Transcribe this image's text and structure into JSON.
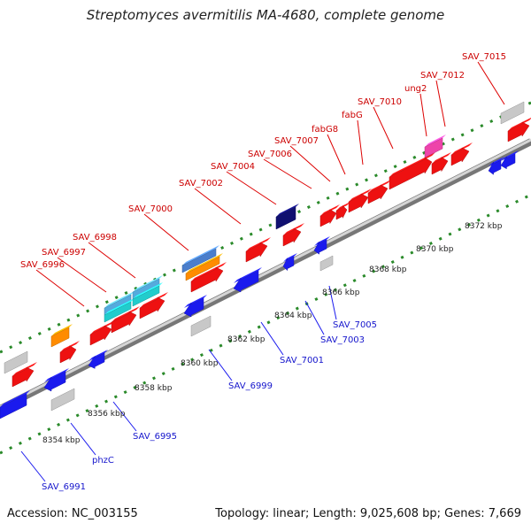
{
  "header": {
    "title": "Streptomyces avermitilis MA-4680, complete genome"
  },
  "footer": {
    "accession": "Accession: NC_003155",
    "summary": "Topology: linear; Length: 9,025,608 bp; Genes: 7,669"
  },
  "colors": {
    "backbone": "#8a8a8a",
    "plus_strand_gene": "#ee1111",
    "minus_strand_gene": "#1a1aee",
    "plus_label": "#cc0000",
    "minus_label": "#1515cc",
    "tick": "#2a8a2a"
  },
  "scale_labels": [
    "8354 kbp",
    "8356 kbp",
    "8358 kbp",
    "8360 kbp",
    "8362 kbp",
    "8364 kbp",
    "8366 kbp",
    "8368 kbp",
    "8370 kbp",
    "8372 kbp"
  ],
  "plus_labels": [
    "SAV_6996",
    "SAV_6997",
    "SAV_6998",
    "SAV_7000",
    "SAV_7002",
    "SAV_7004",
    "SAV_7006",
    "SAV_7007",
    "fabG8",
    "fabG",
    "SAV_7010",
    "ung2",
    "SAV_7012",
    "SAV_7015"
  ],
  "minus_labels": [
    "SAV_6991",
    "phzC",
    "SAV_6995",
    "SAV_6999",
    "SAV_7001",
    "SAV_7003",
    "SAV_7005"
  ]
}
